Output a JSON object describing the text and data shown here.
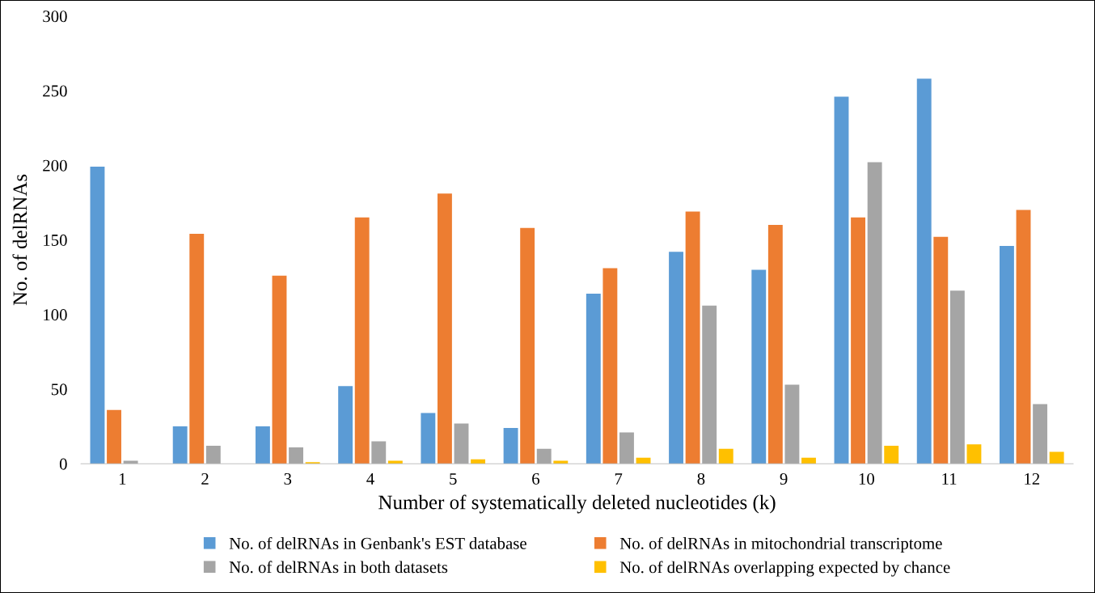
{
  "chart_data": {
    "type": "bar",
    "xlabel": "Number of systematically deleted nucleotides (k)",
    "ylabel": "No. of delRNAs",
    "categories": [
      "1",
      "2",
      "3",
      "4",
      "5",
      "6",
      "7",
      "8",
      "9",
      "10",
      "11",
      "12"
    ],
    "series": [
      {
        "name": "No. of delRNAs in Genbank's EST database",
        "color": "#5b9bd5",
        "values": [
          199,
          25,
          25,
          52,
          34,
          24,
          114,
          142,
          130,
          246,
          258,
          146
        ]
      },
      {
        "name": "No. of delRNAs in mitochondrial transcriptome",
        "color": "#ed7d31",
        "values": [
          36,
          154,
          126,
          165,
          181,
          158,
          131,
          169,
          160,
          165,
          152,
          170
        ]
      },
      {
        "name": "No. of delRNAs in both datasets",
        "color": "#a5a5a5",
        "values": [
          2,
          12,
          11,
          15,
          27,
          10,
          21,
          106,
          53,
          202,
          116,
          40
        ]
      },
      {
        "name": "No. of delRNAs overlapping expected by chance",
        "color": "#ffc000",
        "values": [
          0,
          0,
          1,
          2,
          3,
          2,
          4,
          10,
          4,
          12,
          13,
          8
        ]
      }
    ],
    "ylim": [
      0,
      300
    ],
    "yticks": [
      0,
      50,
      100,
      150,
      200,
      250,
      300
    ],
    "grid": false,
    "legend": "bottom"
  }
}
